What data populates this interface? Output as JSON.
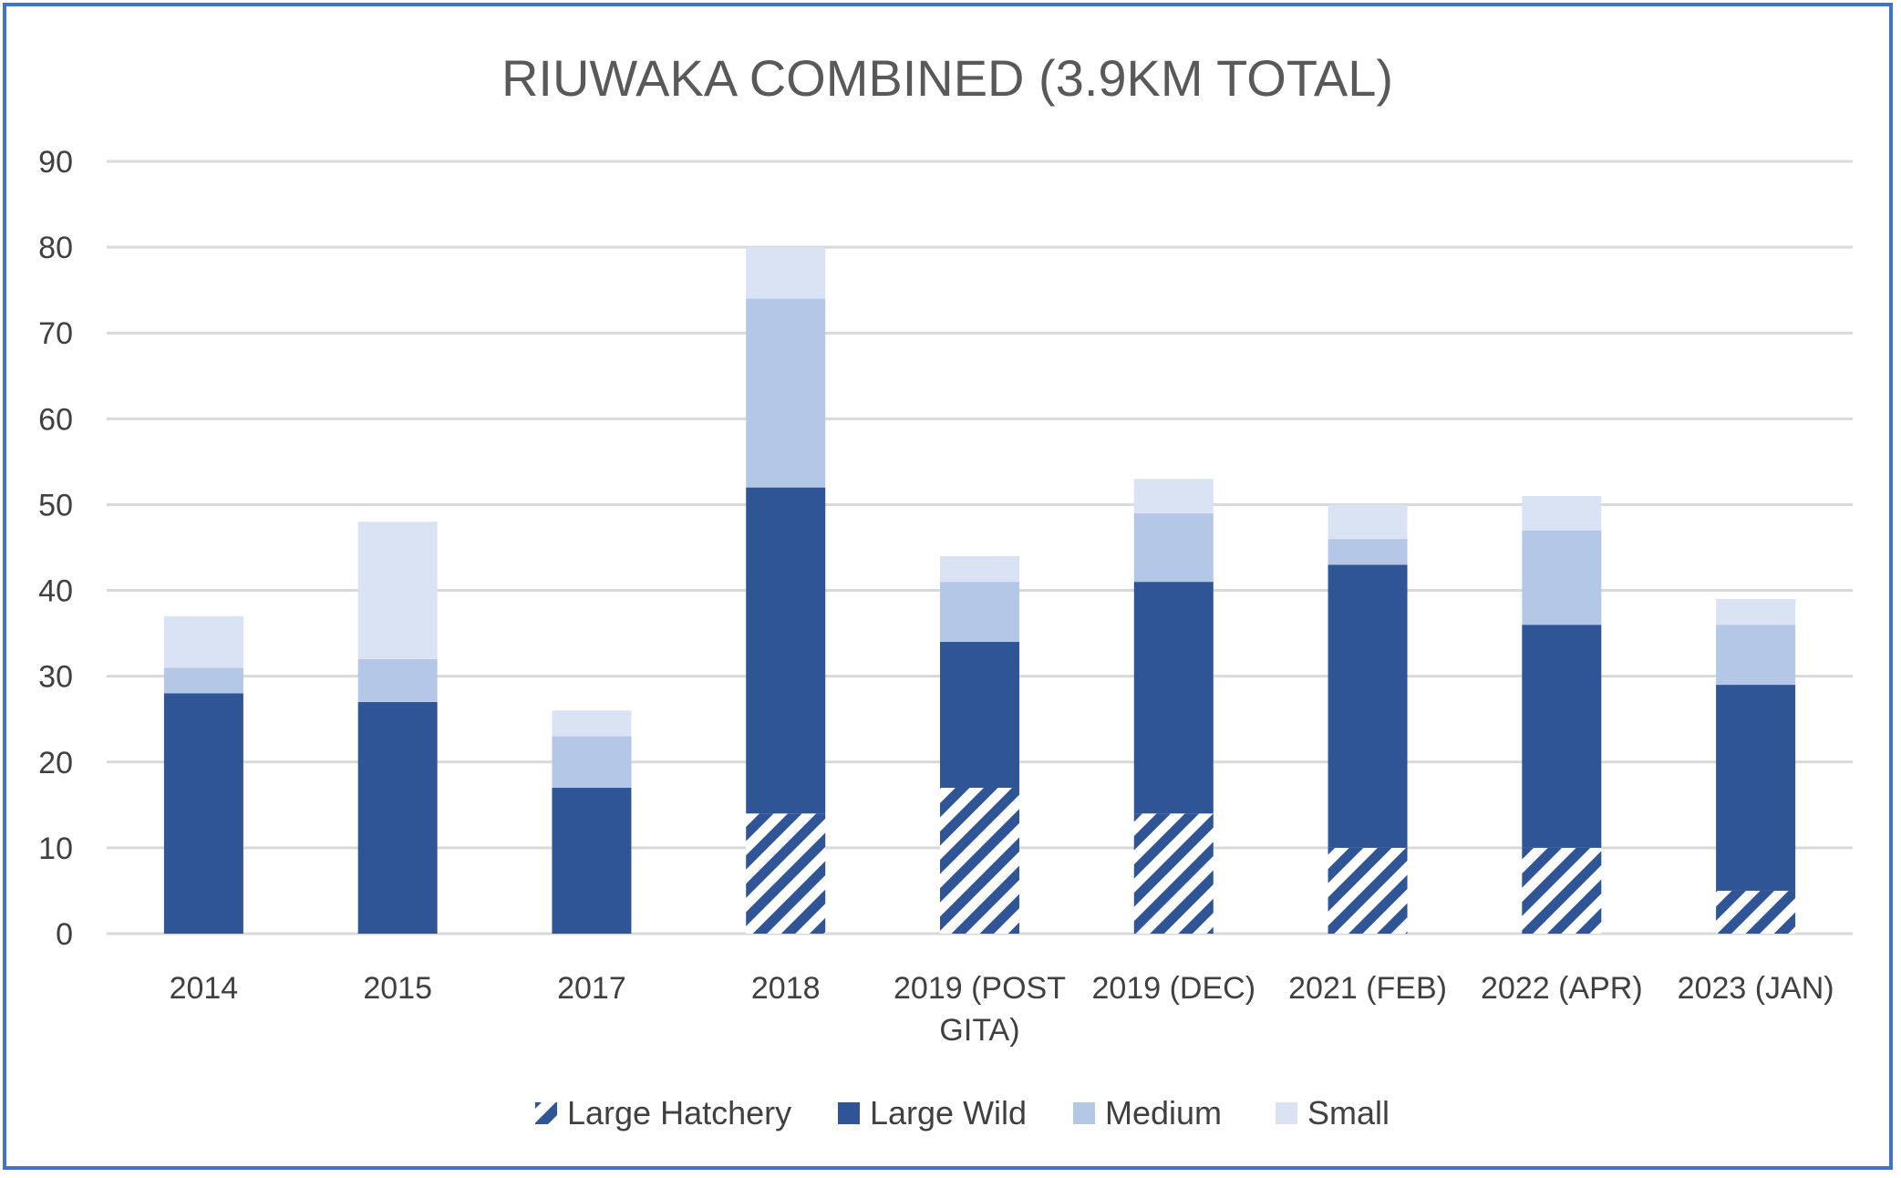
{
  "chart_data": {
    "type": "bar",
    "stacked": true,
    "title": "RIUWAKA COMBINED (3.9KM TOTAL)",
    "xlabel": "",
    "ylabel": "",
    "ylim": [
      0,
      90
    ],
    "yticks": [
      0,
      10,
      20,
      30,
      40,
      50,
      60,
      70,
      80,
      90
    ],
    "grid": true,
    "legend_position": "bottom",
    "categories": [
      "2014",
      "2015",
      "2017",
      "2018",
      "2019 (POST GITA)",
      "2019 (DEC)",
      "2021 (FEB)",
      "2022 (APR)",
      "2023 (JAN)"
    ],
    "category_label_lines": [
      [
        "2014"
      ],
      [
        "2015"
      ],
      [
        "2017"
      ],
      [
        "2018"
      ],
      [
        "2019 (POST",
        "GITA)"
      ],
      [
        "2019 (DEC)"
      ],
      [
        "2021 (FEB)"
      ],
      [
        "2022 (APR)"
      ],
      [
        "2023 (JAN)"
      ]
    ],
    "series": [
      {
        "name": "Large Hatchery",
        "color": "#2f5597",
        "pattern": "diagonal-stripes",
        "values": [
          0,
          0,
          0,
          14,
          17,
          14,
          10,
          10,
          5
        ]
      },
      {
        "name": "Large Wild",
        "color": "#2f5597",
        "values": [
          28,
          27,
          17,
          38,
          17,
          27,
          33,
          26,
          24
        ]
      },
      {
        "name": "Medium",
        "color": "#b4c7e7",
        "values": [
          3,
          5,
          6,
          22,
          7,
          8,
          3,
          11,
          7
        ]
      },
      {
        "name": "Small",
        "color": "#dae3f3",
        "values": [
          6,
          16,
          3,
          6,
          3,
          4,
          4,
          4,
          3
        ]
      }
    ]
  }
}
